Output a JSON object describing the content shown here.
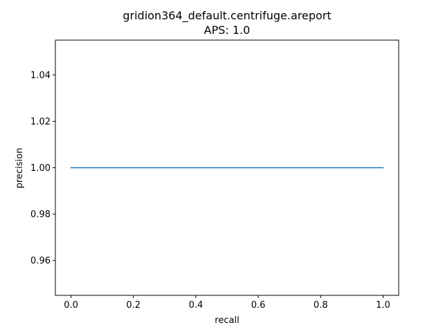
{
  "chart_data": {
    "type": "line",
    "title": "gridion364_default.centrifuge.areport",
    "subtitle": "APS: 1.0",
    "xlabel": "recall",
    "ylabel": "precision",
    "xlim": [
      -0.05,
      1.05
    ],
    "ylim": [
      0.945,
      1.055
    ],
    "xticks": [
      0.0,
      0.2,
      0.4,
      0.6,
      0.8,
      1.0
    ],
    "xtick_labels": [
      "0.0",
      "0.2",
      "0.4",
      "0.6",
      "0.8",
      "1.0"
    ],
    "yticks": [
      0.96,
      0.98,
      1.0,
      1.02,
      1.04
    ],
    "ytick_labels": [
      "0.96",
      "0.98",
      "1.00",
      "1.02",
      "1.04"
    ],
    "grid": false,
    "series": [
      {
        "color": "#1f77b4",
        "x": [
          0.0,
          1.0
        ],
        "y": [
          1.0,
          1.0
        ]
      }
    ]
  }
}
